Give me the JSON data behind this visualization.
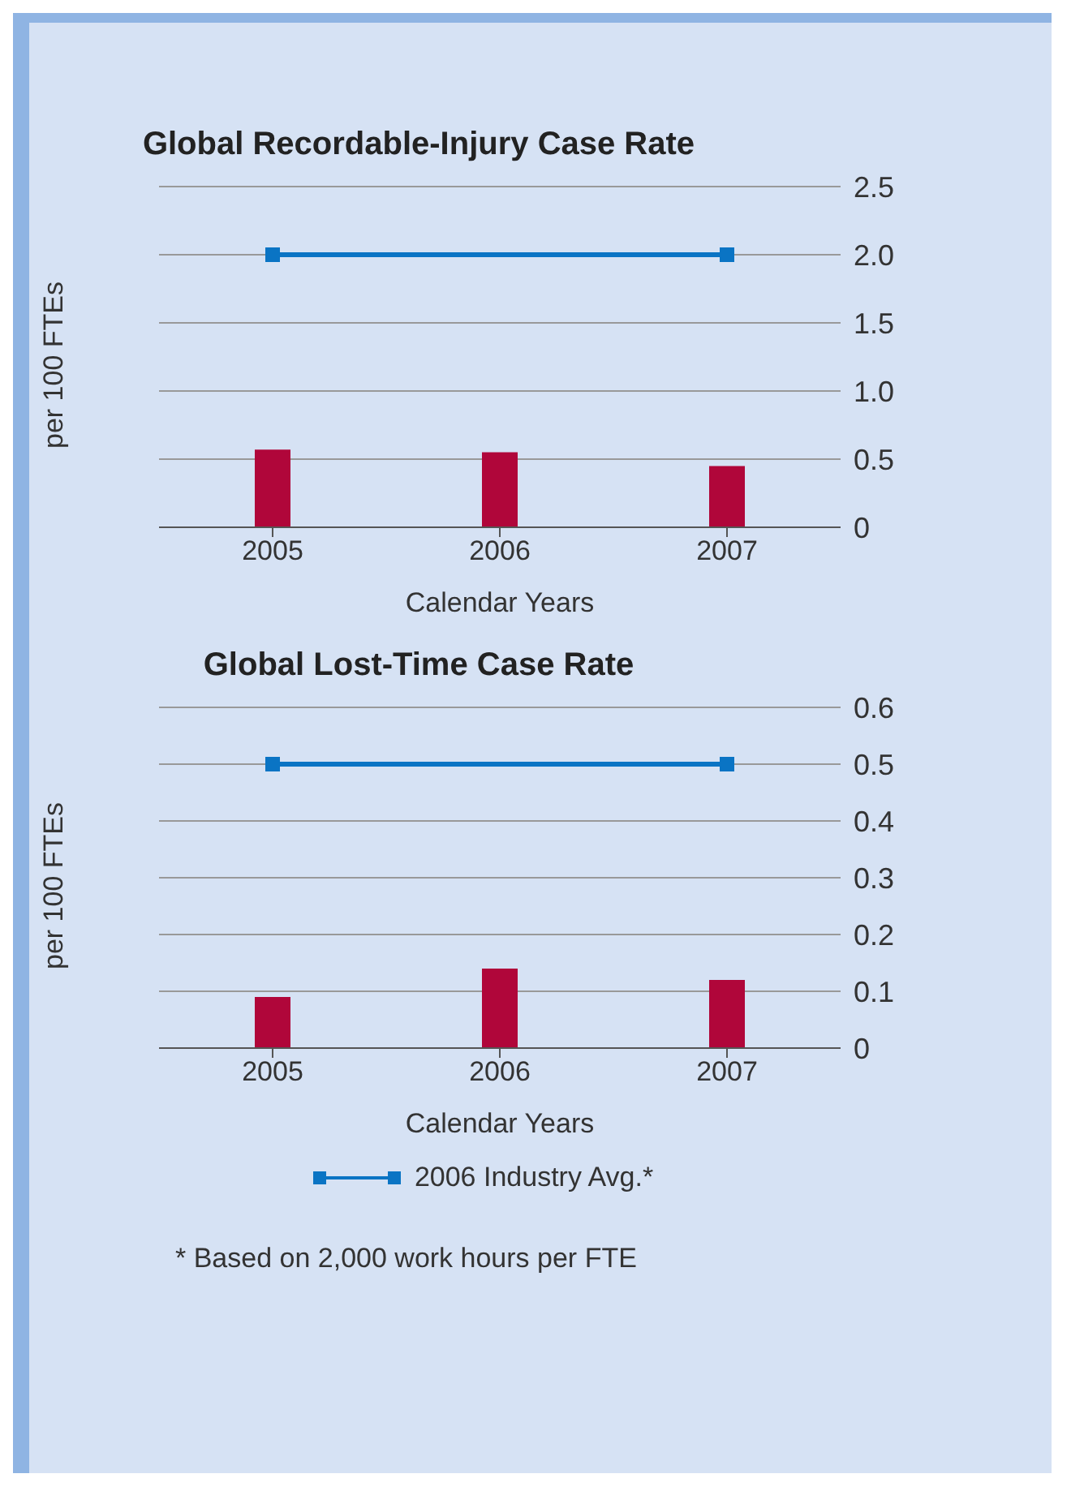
{
  "chart_data": [
    {
      "type": "bar",
      "title": "Global Recordable-Injury Case Rate",
      "xlabel": "Calendar Years",
      "ylabel": "per 100 FTEs",
      "categories": [
        "2005",
        "2006",
        "2007"
      ],
      "series": [
        {
          "color": "#b0063a",
          "values": [
            0.57,
            0.55,
            0.45
          ]
        },
        {
          "type": "line",
          "color": "#0a74c4",
          "values": [
            2.0,
            null,
            2.0
          ],
          "marker": "square"
        }
      ],
      "ylim": [
        0,
        2.5
      ],
      "yticks": [
        0,
        {
          "value": 0.5,
          "label": "0.5"
        },
        {
          "value": 1,
          "label": "1.0"
        },
        {
          "value": 1.5,
          "label": "1.5"
        },
        {
          "value": 2,
          "label": "2.0"
        },
        {
          "value": 2.5,
          "label": "2.5"
        }
      ],
      "grid": "y"
    },
    {
      "type": "bar",
      "title": "Global Lost-Time Case Rate",
      "xlabel": "Calendar Years",
      "ylabel": "per 100 FTEs",
      "categories": [
        "2005",
        "2006",
        "2007"
      ],
      "series": [
        {
          "color": "#b0063a",
          "values": [
            0.09,
            0.14,
            0.12
          ]
        },
        {
          "type": "line",
          "name": "2006 Industry Avg.*",
          "color": "#0a74c4",
          "values": [
            0.5,
            null,
            0.5
          ],
          "marker": "square"
        }
      ],
      "ylim": [
        0,
        0.6
      ],
      "yticks": [
        0,
        0.1,
        0.2,
        0.3,
        0.4,
        0.5,
        0.6
      ],
      "grid": "y",
      "legend": "bottom",
      "annotations": [
        "* Based on 2,000 work hours per FTE"
      ]
    }
  ]
}
